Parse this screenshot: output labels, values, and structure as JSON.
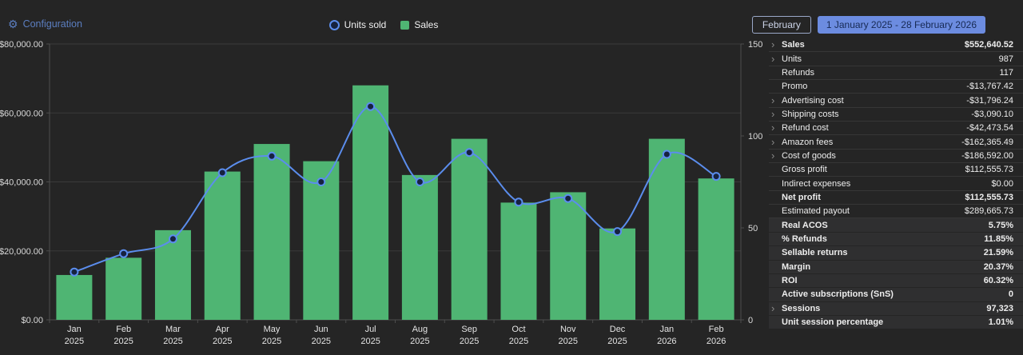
{
  "header": {
    "configuration_label": "Configuration",
    "legend": [
      {
        "label": "Units sold",
        "icon": "circle-outline-icon",
        "color": "#5b8ded"
      },
      {
        "label": "Sales",
        "icon": "green-square-icon",
        "color": "#4fb573"
      }
    ],
    "month_button": "February",
    "range_button": "1 January 2025 - 28 February 2026"
  },
  "chart_data": {
    "type": "combo-bar-line",
    "title": "",
    "categories": [
      {
        "month": "Jan",
        "year": "2025"
      },
      {
        "month": "Feb",
        "year": "2025"
      },
      {
        "month": "Mar",
        "year": "2025"
      },
      {
        "month": "Apr",
        "year": "2025"
      },
      {
        "month": "May",
        "year": "2025"
      },
      {
        "month": "Jun",
        "year": "2025"
      },
      {
        "month": "Jul",
        "year": "2025"
      },
      {
        "month": "Aug",
        "year": "2025"
      },
      {
        "month": "Sep",
        "year": "2025"
      },
      {
        "month": "Oct",
        "year": "2025"
      },
      {
        "month": "Nov",
        "year": "2025"
      },
      {
        "month": "Dec",
        "year": "2025"
      },
      {
        "month": "Jan",
        "year": "2026"
      },
      {
        "month": "Feb",
        "year": "2026"
      }
    ],
    "series": [
      {
        "name": "Sales",
        "type": "bar",
        "axis": "left",
        "color": "#4fb573",
        "values": [
          13000,
          18000,
          26000,
          43000,
          51000,
          46000,
          68000,
          42000,
          52500,
          34000,
          37000,
          26500,
          52500,
          41000
        ]
      },
      {
        "name": "Units sold",
        "type": "line",
        "axis": "right",
        "color": "#5b8ded",
        "marker_fill": "#16223f",
        "values": [
          26,
          36,
          44,
          80,
          89,
          75,
          116,
          75,
          91,
          64,
          66,
          48,
          90,
          78
        ]
      }
    ],
    "left_axis": {
      "min": 0,
      "max": 80000,
      "tick_values": [
        0,
        20000,
        40000,
        60000,
        80000
      ],
      "tick_labels": [
        "$0.00",
        "$20,000.00",
        "$40,000.00",
        "$60,000.00",
        "$80,000.00"
      ]
    },
    "right_axis": {
      "min": 0,
      "max": 150,
      "tick_values": [
        0,
        50,
        100,
        150
      ],
      "tick_labels": [
        "0",
        "50",
        "100",
        "150"
      ]
    },
    "grid": true,
    "legend_position": "top-center"
  },
  "metrics": {
    "rows": [
      {
        "label": "Sales",
        "value": "$552,640.52",
        "chevron": true,
        "bold": true,
        "section": "main"
      },
      {
        "label": "Units",
        "value": "987",
        "chevron": true,
        "bold": false,
        "section": "main"
      },
      {
        "label": "Refunds",
        "value": "117",
        "chevron": false,
        "bold": false,
        "section": "main"
      },
      {
        "label": "Promo",
        "value": "-$13,767.42",
        "chevron": false,
        "bold": false,
        "section": "main"
      },
      {
        "label": "Advertising cost",
        "value": "-$31,796.24",
        "chevron": true,
        "bold": false,
        "section": "main"
      },
      {
        "label": "Shipping costs",
        "value": "-$3,090.10",
        "chevron": true,
        "bold": false,
        "section": "main"
      },
      {
        "label": "Refund cost",
        "value": "-$42,473.54",
        "chevron": true,
        "bold": false,
        "section": "main"
      },
      {
        "label": "Amazon fees",
        "value": "-$162,365.49",
        "chevron": true,
        "bold": false,
        "section": "main"
      },
      {
        "label": "Cost of goods",
        "value": "-$186,592.00",
        "chevron": true,
        "bold": false,
        "section": "main"
      },
      {
        "label": "Gross profit",
        "value": "$112,555.73",
        "chevron": false,
        "bold": false,
        "section": "main"
      },
      {
        "label": "Indirect expenses",
        "value": "$0.00",
        "chevron": false,
        "bold": false,
        "section": "main"
      },
      {
        "label": "Net profit",
        "value": "$112,555.73",
        "chevron": false,
        "bold": true,
        "section": "main"
      },
      {
        "label": "Estimated payout",
        "value": "$289,665.73",
        "chevron": false,
        "bold": false,
        "section": "main"
      },
      {
        "label": "Real ACOS",
        "value": "5.75%",
        "chevron": false,
        "bold": true,
        "section": "highlight"
      },
      {
        "label": "% Refunds",
        "value": "11.85%",
        "chevron": false,
        "bold": true,
        "section": "highlight"
      },
      {
        "label": "Sellable returns",
        "value": "21.59%",
        "chevron": false,
        "bold": true,
        "section": "highlight"
      },
      {
        "label": "Margin",
        "value": "20.37%",
        "chevron": false,
        "bold": true,
        "section": "highlight"
      },
      {
        "label": "ROI",
        "value": "60.32%",
        "chevron": false,
        "bold": true,
        "section": "highlight"
      },
      {
        "label": "Active subscriptions (SnS)",
        "value": "0",
        "chevron": false,
        "bold": true,
        "section": "highlight"
      },
      {
        "label": "Sessions",
        "value": "97,323",
        "chevron": true,
        "bold": true,
        "section": "highlight"
      },
      {
        "label": "Unit session percentage",
        "value": "1.01%",
        "chevron": false,
        "bold": true,
        "section": "highlight"
      }
    ]
  },
  "colors": {
    "background": "#252525",
    "grid": "#3a3a3a",
    "axis": "#4d4d4d",
    "axis_text": "#d9d9d9",
    "bar": "#4fb573",
    "line": "#5b8ded",
    "marker_fill": "#16223f",
    "accent_blue": "#6c8ce0",
    "config_blue": "#5b7ec0",
    "panel_highlight": "#2f2f30"
  }
}
